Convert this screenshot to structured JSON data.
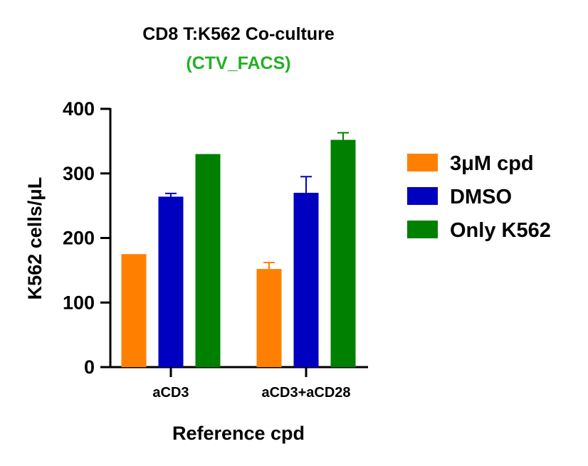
{
  "chart_data": {
    "type": "bar",
    "title": "CD8 T:K562 Co-culture",
    "subtitle": "(CTV_FACS)",
    "subtitle_color": "#22b022",
    "xlabel": "Reference cpd",
    "ylabel": "K562 cells/μL",
    "ylim": [
      0,
      400
    ],
    "yticks": [
      0,
      100,
      200,
      300,
      400
    ],
    "categories": [
      "aCD3",
      "aCD3+aCD28"
    ],
    "series": [
      {
        "name": "3μM cpd",
        "color": "#ff8000",
        "values": [
          175,
          152
        ],
        "errors": [
          0,
          10
        ]
      },
      {
        "name": "DMSO",
        "color": "#0000c0",
        "values": [
          264,
          270
        ],
        "errors": [
          5,
          25
        ]
      },
      {
        "name": "Only K562",
        "color": "#008000",
        "values": [
          330,
          352
        ],
        "errors": [
          0,
          11
        ]
      }
    ],
    "legend_position": "right",
    "grid": false
  }
}
